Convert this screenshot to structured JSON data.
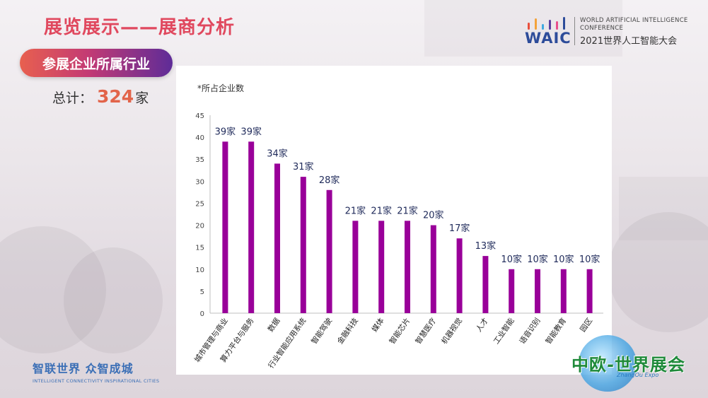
{
  "header": {
    "title": "展览展示——展商分析",
    "section_label": "参展企业所属行业",
    "total_label": "总计：",
    "total_value": "324",
    "total_unit": "家"
  },
  "logo": {
    "waic": "WAIC",
    "en_line1": "WORLD ARTIFICIAL INTELLIGENCE",
    "en_line2": "CONFERENCE",
    "cn_line": "2021世界人工智能大会",
    "bar_colors": [
      "#e94e3c",
      "#f3a33a",
      "#3fa9e0",
      "#5b3fa0",
      "#e94e8c",
      "#2d4c9a"
    ]
  },
  "footer": {
    "slogan_cn": "智联世界 众智成城",
    "slogan_en": "INTELLIGENT CONNECTIVITY  INSPIRATIONAL CITIES",
    "expo_cn": "中欧-世界展会",
    "expo_en": "ZhangOu Expo"
  },
  "chart_data": {
    "type": "bar",
    "note": "*所占企业数",
    "categories": [
      "城市管理与商业",
      "算力平台与服务",
      "数据",
      "行业智能应用系统",
      "智能驾驶",
      "金融科技",
      "媒体",
      "智能芯片",
      "智慧医疗",
      "机器视觉",
      "人才",
      "工业智能",
      "语音识别",
      "智能教育",
      "园区"
    ],
    "values": [
      39,
      39,
      34,
      31,
      28,
      21,
      21,
      21,
      20,
      17,
      13,
      10,
      10,
      10,
      10
    ],
    "value_labels": [
      "39家",
      "39家",
      "34家",
      "31家",
      "28家",
      "21家",
      "21家",
      "21家",
      "20家",
      "17家",
      "13家",
      "10家",
      "10家",
      "10家",
      "10家"
    ],
    "yticks": [
      "0",
      "5",
      "10",
      "15",
      "20",
      "25",
      "30",
      "35",
      "40",
      "45"
    ],
    "ylim": [
      0,
      45
    ],
    "bar_color": "#990099",
    "grid": false,
    "legend": "none"
  }
}
